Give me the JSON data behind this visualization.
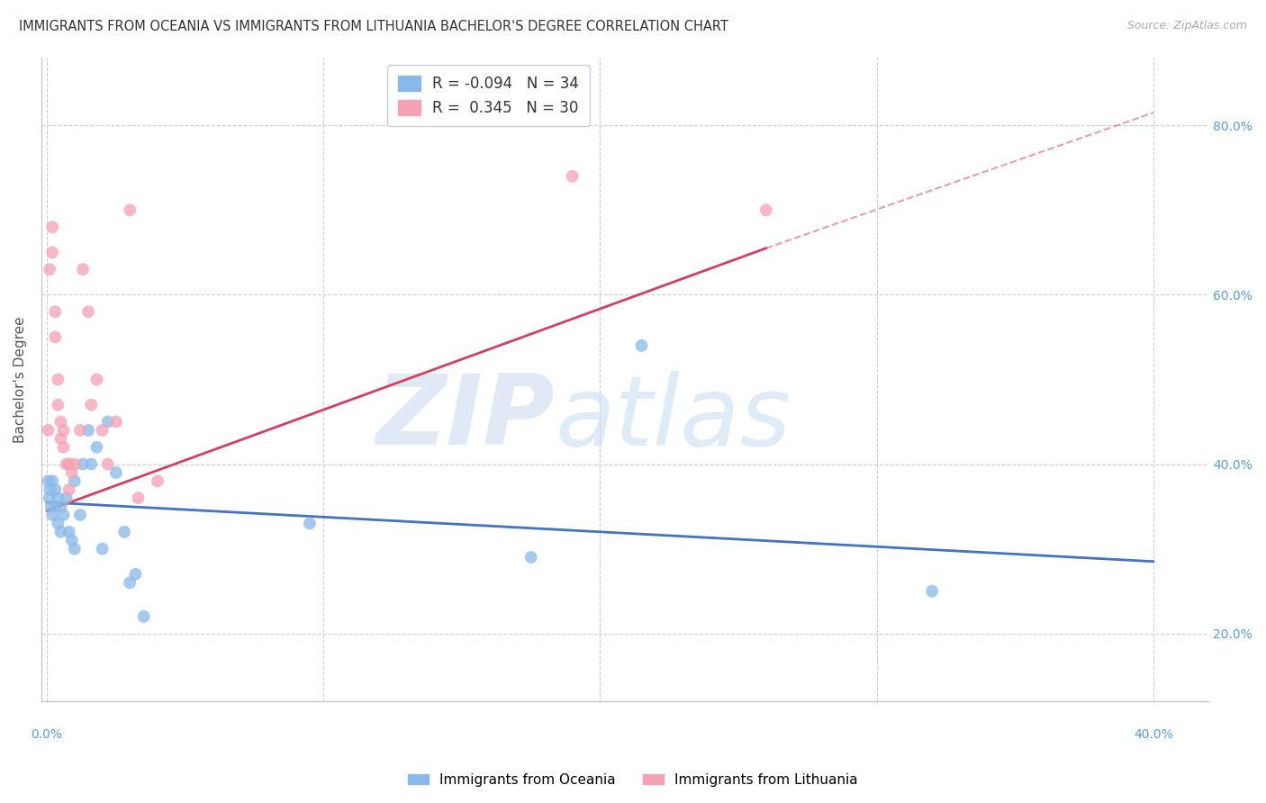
{
  "title": "IMMIGRANTS FROM OCEANIA VS IMMIGRANTS FROM LITHUANIA BACHELOR'S DEGREE CORRELATION CHART",
  "source": "Source: ZipAtlas.com",
  "ylabel": "Bachelor's Degree",
  "y_ticks": [
    0.2,
    0.4,
    0.6,
    0.8
  ],
  "y_tick_labels": [
    "20.0%",
    "40.0%",
    "60.0%",
    "80.0%"
  ],
  "x_lim": [
    -0.002,
    0.42
  ],
  "y_lim": [
    0.12,
    0.88
  ],
  "legend_r1": "-0.094",
  "legend_n1": "34",
  "legend_r2": "0.345",
  "legend_n2": "30",
  "color_oceania": "#89B9E8",
  "color_lithuania": "#F4A0B5",
  "color_line_oceania": "#4472C4",
  "color_line_lithuania": "#D04060",
  "color_dashed": "#E0A0B0",
  "color_axis": "#5B9BD5",
  "color_title": "#333333",
  "color_source": "#AAAAAA",
  "oceania_x": [
    0.0005,
    0.0008,
    0.001,
    0.0015,
    0.002,
    0.002,
    0.003,
    0.003,
    0.004,
    0.004,
    0.005,
    0.005,
    0.006,
    0.007,
    0.008,
    0.009,
    0.01,
    0.01,
    0.012,
    0.013,
    0.015,
    0.016,
    0.018,
    0.02,
    0.022,
    0.025,
    0.028,
    0.03,
    0.032,
    0.035,
    0.095,
    0.175,
    0.215,
    0.32
  ],
  "oceania_y": [
    0.38,
    0.36,
    0.37,
    0.35,
    0.38,
    0.34,
    0.37,
    0.35,
    0.36,
    0.33,
    0.35,
    0.32,
    0.34,
    0.36,
    0.32,
    0.31,
    0.3,
    0.38,
    0.34,
    0.4,
    0.44,
    0.4,
    0.42,
    0.3,
    0.45,
    0.39,
    0.32,
    0.26,
    0.27,
    0.22,
    0.33,
    0.29,
    0.54,
    0.25
  ],
  "lithuania_x": [
    0.0005,
    0.001,
    0.002,
    0.002,
    0.003,
    0.003,
    0.004,
    0.004,
    0.005,
    0.005,
    0.006,
    0.006,
    0.007,
    0.008,
    0.008,
    0.009,
    0.01,
    0.012,
    0.013,
    0.015,
    0.016,
    0.018,
    0.02,
    0.022,
    0.025,
    0.03,
    0.033,
    0.04,
    0.19,
    0.26
  ],
  "lithuania_y": [
    0.44,
    0.63,
    0.65,
    0.68,
    0.55,
    0.58,
    0.5,
    0.47,
    0.45,
    0.43,
    0.44,
    0.42,
    0.4,
    0.4,
    0.37,
    0.39,
    0.4,
    0.44,
    0.63,
    0.58,
    0.47,
    0.5,
    0.44,
    0.4,
    0.45,
    0.7,
    0.36,
    0.38,
    0.74,
    0.7
  ],
  "trend_oceania_x0": 0.0,
  "trend_oceania_x1": 0.4,
  "trend_oceania_y0": 0.355,
  "trend_oceania_y1": 0.285,
  "trend_lith_solid_x0": 0.0,
  "trend_lith_solid_x1": 0.26,
  "trend_lith_y0": 0.345,
  "trend_lith_y1": 0.655,
  "trend_lith_dash_x0": 0.26,
  "trend_lith_dash_x1": 0.4,
  "trend_lith_dash_y0": 0.655,
  "trend_lith_dash_y1": 0.815
}
